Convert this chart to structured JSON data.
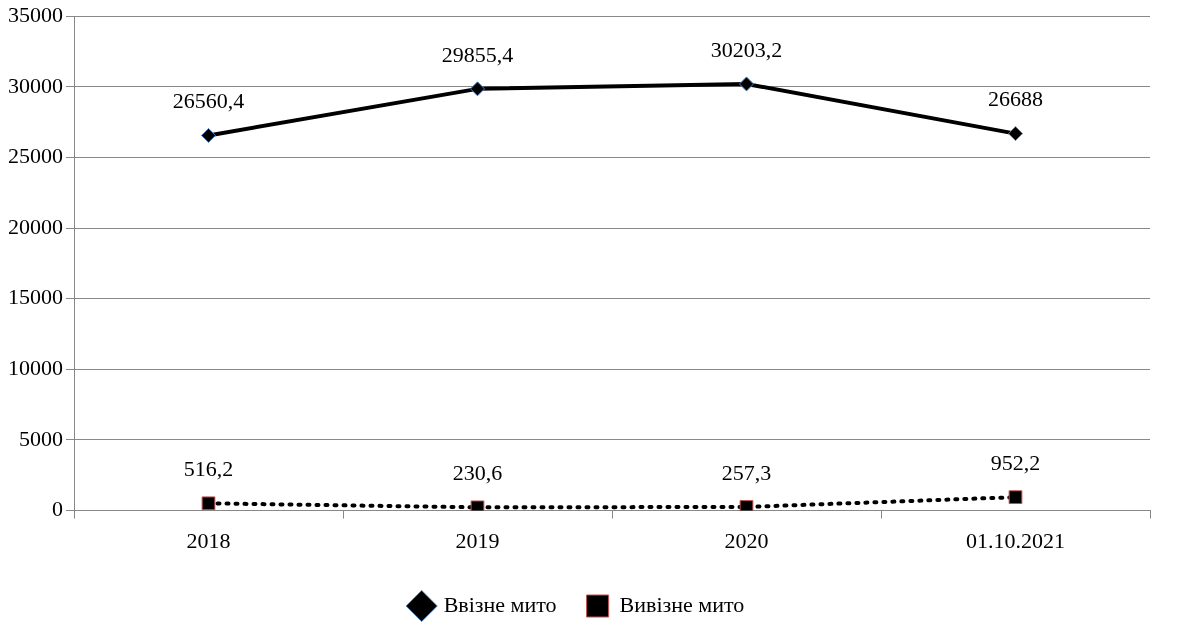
{
  "chart_data": {
    "type": "line",
    "categories": [
      "2018",
      "2019",
      "2020",
      "01.10.2021"
    ],
    "series": [
      {
        "name": "Ввізне мито",
        "color": "#000000",
        "values": [
          26560.4,
          29855.4,
          30203.2,
          26688
        ],
        "value_labels": [
          "26560,4",
          "29855,4",
          "30203,2",
          "26688"
        ],
        "marker": "diamond",
        "line_style": "solid"
      },
      {
        "name": "Вивізне мито",
        "color": "#000000",
        "values": [
          516.2,
          230.6,
          257.3,
          952.2
        ],
        "value_labels": [
          "516,2",
          "230,6",
          "257,3",
          "952,2"
        ],
        "marker": "square",
        "line_style": "dotted"
      }
    ],
    "ylim": [
      0,
      35000
    ],
    "yticks": [
      0,
      5000,
      10000,
      15000,
      20000,
      25000,
      30000,
      35000
    ],
    "grid": "y",
    "legend": "bottom"
  }
}
